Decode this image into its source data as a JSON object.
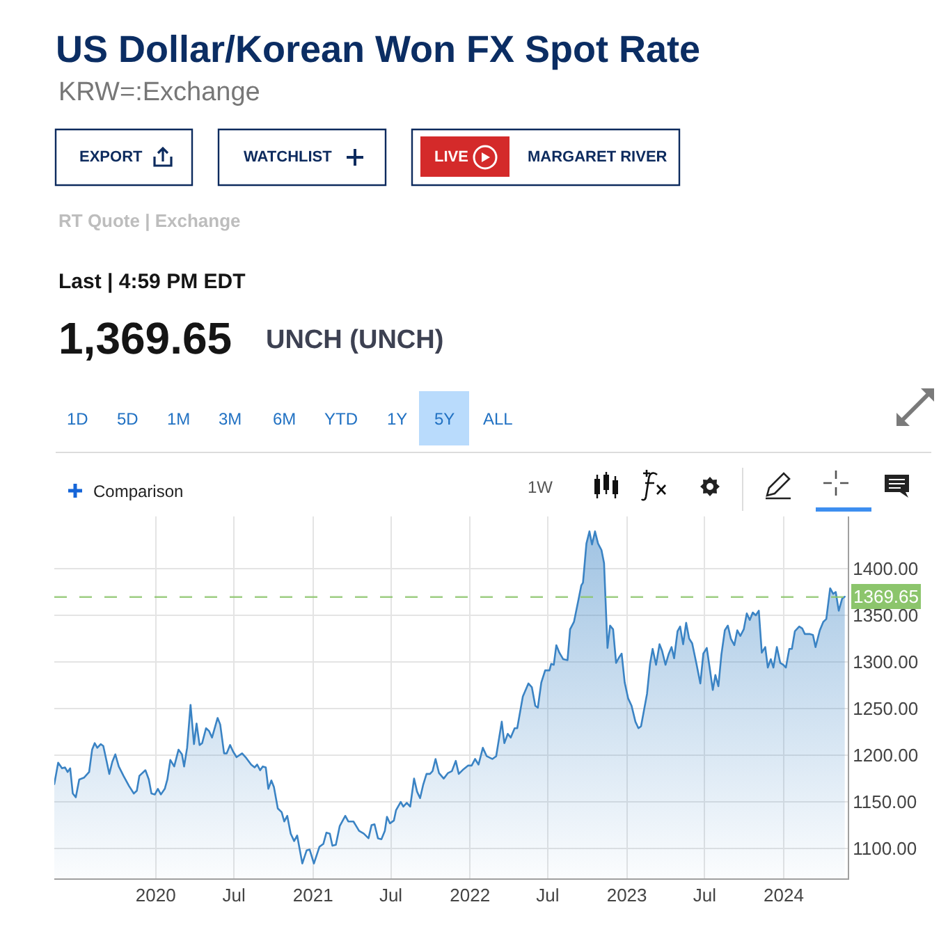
{
  "chart_data": {
    "type": "area",
    "title": "US Dollar/Korean Won FX Spot Rate",
    "subtitle": "KRW=:Exchange",
    "annotations": [
      "EXPORT",
      "WATCHLIST",
      "LIVE",
      "MARGARET RIVER",
      "RT Quote | Exchange",
      "Last | 4:59 PM EDT",
      "1,369.65",
      "UNCH (UNCH)",
      "1D",
      "5D",
      "1M",
      "3M",
      "6M",
      "YTD",
      "1Y",
      "5Y",
      "ALL",
      "Comparison",
      "1W"
    ],
    "x": [
      "2019-05-10",
      "2019-05-19",
      "2019-05-28",
      "2019-06-04",
      "2019-06-10",
      "2019-06-16",
      "2019-06-22",
      "2019-06-29",
      "2019-07-07",
      "2019-07-18",
      "2019-07-30",
      "2019-08-06",
      "2019-08-12",
      "2019-08-18",
      "2019-08-26",
      "2019-09-01",
      "2019-09-09",
      "2019-09-15",
      "2019-09-22",
      "2019-09-29",
      "2019-10-07",
      "2019-10-18",
      "2019-10-31",
      "2019-11-11",
      "2019-11-18",
      "2019-11-24",
      "2019-12-08",
      "2019-12-16",
      "2019-12-22",
      "2019-12-30",
      "2020-01-06",
      "2020-01-13",
      "2020-01-22",
      "2020-01-28",
      "2020-02-04",
      "2020-02-13",
      "2020-02-23",
      "2020-03-02",
      "2020-03-07",
      "2020-03-14",
      "2020-03-22",
      "2020-03-30",
      "2020-04-05",
      "2020-04-12",
      "2020-04-18",
      "2020-04-27",
      "2020-05-04",
      "2020-05-11",
      "2020-05-24",
      "2020-05-30",
      "2020-06-08",
      "2020-06-14",
      "2020-06-22",
      "2020-06-29",
      "2020-07-07",
      "2020-07-20",
      "2020-07-28",
      "2020-08-10",
      "2020-08-18",
      "2020-08-24",
      "2020-08-31",
      "2020-09-06",
      "2020-09-13",
      "2020-09-19",
      "2020-09-26",
      "2020-10-02",
      "2020-10-11",
      "2020-10-20",
      "2020-10-26",
      "2020-11-02",
      "2020-11-10",
      "2020-11-18",
      "2020-11-25",
      "2020-12-07",
      "2020-12-17",
      "2020-12-24",
      "2021-01-03",
      "2021-01-16",
      "2021-01-25",
      "2021-02-01",
      "2021-02-09",
      "2021-02-15",
      "2021-02-23",
      "2021-03-04",
      "2021-03-17",
      "2021-03-24",
      "2021-04-05",
      "2021-04-18",
      "2021-04-29",
      "2021-05-10",
      "2021-05-17",
      "2021-05-24",
      "2021-06-01",
      "2021-06-09",
      "2021-06-17",
      "2021-06-22",
      "2021-06-29",
      "2021-07-08",
      "2021-07-13",
      "2021-07-24",
      "2021-07-30",
      "2021-08-07",
      "2021-08-15",
      "2021-08-24",
      "2021-08-31",
      "2021-09-07",
      "2021-09-14",
      "2021-09-22",
      "2021-09-30",
      "2021-10-06",
      "2021-10-13",
      "2021-10-21",
      "2021-11-01",
      "2021-11-11",
      "2021-11-20",
      "2021-11-29",
      "2021-12-06",
      "2021-12-17",
      "2021-12-28",
      "2022-01-05",
      "2022-01-13",
      "2022-01-21",
      "2022-01-31",
      "2022-02-09",
      "2022-02-22",
      "2022-03-03",
      "2022-03-16",
      "2022-03-22",
      "2022-03-30",
      "2022-04-06",
      "2022-04-15",
      "2022-04-21",
      "2022-05-04",
      "2022-05-17",
      "2022-05-25",
      "2022-06-02",
      "2022-06-08",
      "2022-06-16",
      "2022-06-25",
      "2022-07-05",
      "2022-07-09",
      "2022-07-15",
      "2022-07-21",
      "2022-07-28",
      "2022-08-06",
      "2022-08-16",
      "2022-08-22",
      "2022-08-31",
      "2022-09-11",
      "2022-09-17",
      "2022-09-21",
      "2022-09-29",
      "2022-10-06",
      "2022-10-12",
      "2022-10-19",
      "2022-10-26",
      "2022-11-03",
      "2022-11-09",
      "2022-11-17",
      "2022-11-23",
      "2022-11-30",
      "2022-12-07",
      "2022-12-14",
      "2022-12-20",
      "2022-12-27",
      "2023-01-04",
      "2023-01-12",
      "2023-01-21",
      "2023-01-28",
      "2023-02-03",
      "2023-02-09",
      "2023-02-17",
      "2023-02-24",
      "2023-03-02",
      "2023-03-10",
      "2023-03-18",
      "2023-03-24",
      "2023-04-01",
      "2023-04-08",
      "2023-04-15",
      "2023-04-21",
      "2023-04-29",
      "2023-05-05",
      "2023-05-12",
      "2023-05-19",
      "2023-05-26",
      "2023-06-02",
      "2023-06-12",
      "2023-06-21",
      "2023-06-28",
      "2023-07-06",
      "2023-07-13",
      "2023-07-20",
      "2023-07-26",
      "2023-08-02",
      "2023-08-09",
      "2023-08-17",
      "2023-08-24",
      "2023-08-31",
      "2023-09-08",
      "2023-09-15",
      "2023-09-22",
      "2023-09-30",
      "2023-10-07",
      "2023-10-14",
      "2023-10-21",
      "2023-10-28",
      "2023-11-04",
      "2023-11-11",
      "2023-11-19",
      "2023-11-25",
      "2023-12-02",
      "2023-12-08",
      "2023-12-16",
      "2023-12-24",
      "2023-12-31",
      "2024-01-06",
      "2024-01-14",
      "2024-01-20",
      "2024-01-27",
      "2024-02-06",
      "2024-02-13",
      "2024-02-19",
      "2024-03-01",
      "2024-03-09",
      "2024-03-15",
      "2024-03-25",
      "2024-04-02",
      "2024-04-09",
      "2024-04-18",
      "2024-04-25",
      "2024-05-01",
      "2024-05-08",
      "2024-05-16",
      "2024-05-22"
    ],
    "values": [
      1169,
      1192,
      1186,
      1187,
      1182,
      1186,
      1159,
      1155,
      1174,
      1176,
      1182,
      1206,
      1213,
      1208,
      1212,
      1210,
      1193,
      1180,
      1193,
      1201,
      1188,
      1178,
      1167,
      1159,
      1162,
      1178,
      1184,
      1174,
      1159,
      1158,
      1164,
      1158,
      1164,
      1174,
      1195,
      1188,
      1206,
      1201,
      1188,
      1208,
      1254,
      1212,
      1234,
      1211,
      1213,
      1229,
      1226,
      1219,
      1240,
      1233,
      1202,
      1202,
      1211,
      1204,
      1198,
      1202,
      1198,
      1190,
      1187,
      1190,
      1184,
      1188,
      1187,
      1164,
      1173,
      1166,
      1143,
      1139,
      1129,
      1135,
      1116,
      1108,
      1114,
      1084,
      1098,
      1099,
      1084,
      1102,
      1105,
      1117,
      1116,
      1103,
      1104,
      1124,
      1135,
      1129,
      1129,
      1119,
      1116,
      1111,
      1125,
      1126,
      1111,
      1110,
      1119,
      1134,
      1127,
      1130,
      1141,
      1150,
      1145,
      1149,
      1145,
      1175,
      1161,
      1154,
      1168,
      1180,
      1180,
      1183,
      1196,
      1181,
      1175,
      1181,
      1183,
      1194,
      1180,
      1185,
      1189,
      1189,
      1196,
      1190,
      1208,
      1199,
      1196,
      1199,
      1236,
      1213,
      1223,
      1219,
      1229,
      1229,
      1263,
      1277,
      1273,
      1253,
      1251,
      1278,
      1291,
      1291,
      1298,
      1297,
      1318,
      1310,
      1303,
      1302,
      1335,
      1343,
      1368,
      1382,
      1385,
      1427,
      1440,
      1426,
      1440,
      1427,
      1420,
      1406,
      1315,
      1339,
      1335,
      1299,
      1305,
      1309,
      1278,
      1261,
      1253,
      1236,
      1229,
      1231,
      1246,
      1266,
      1298,
      1314,
      1297,
      1319,
      1312,
      1297,
      1308,
      1316,
      1304,
      1333,
      1338,
      1319,
      1342,
      1325,
      1320,
      1298,
      1277,
      1309,
      1315,
      1293,
      1270,
      1286,
      1274,
      1308,
      1334,
      1339,
      1325,
      1318,
      1334,
      1328,
      1335,
      1352,
      1345,
      1353,
      1350,
      1355,
      1310,
      1316,
      1294,
      1303,
      1294,
      1316,
      1299,
      1297,
      1294,
      1314,
      1314,
      1333,
      1338,
      1336,
      1330,
      1330,
      1329,
      1316,
      1334,
      1343,
      1346,
      1379,
      1373,
      1375,
      1355,
      1368,
      1370
    ],
    "color": "#3a83c4",
    "xlim": [
      "2019-05-10",
      "2024-05-29"
    ],
    "xticks": [
      {
        "value": "2020-01-01",
        "label": "2020"
      },
      {
        "value": "2020-07-01",
        "label": "Jul"
      },
      {
        "value": "2021-01-01",
        "label": "2021"
      },
      {
        "value": "2021-07-01",
        "label": "Jul"
      },
      {
        "value": "2022-01-01",
        "label": "2022"
      },
      {
        "value": "2022-07-01",
        "label": "Jul"
      },
      {
        "value": "2023-01-01",
        "label": "2023"
      },
      {
        "value": "2023-07-01",
        "label": "Jul"
      },
      {
        "value": "2024-01-01",
        "label": "2024"
      }
    ],
    "ylim": [
      1068,
      1456
    ],
    "yticks": [
      {
        "value": 1100,
        "label": "1100.00"
      },
      {
        "value": 1150,
        "label": "1150.00"
      },
      {
        "value": 1200,
        "label": "1200.00"
      },
      {
        "value": 1250,
        "label": "1250.00"
      },
      {
        "value": 1300,
        "label": "1300.00"
      },
      {
        "value": 1350,
        "label": "1350.00"
      },
      {
        "value": 1400,
        "label": "1400.00"
      }
    ],
    "grid": true,
    "ref_lines": [
      {
        "axis": "y",
        "value": 1369.65,
        "label": "1369.65",
        "color": "#8cc56c",
        "line_style": "dashed"
      }
    ]
  }
}
